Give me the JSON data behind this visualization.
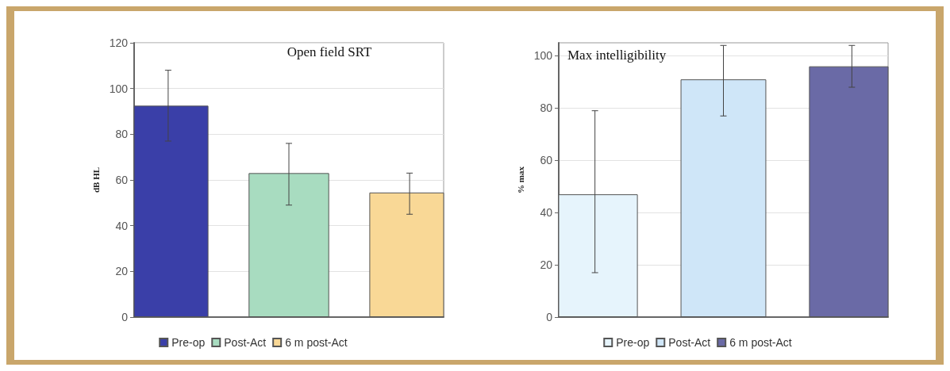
{
  "chart_data": [
    {
      "type": "bar",
      "title": "Open field SRT",
      "ylabel": "dB HL",
      "categories": [
        null
      ],
      "ylim": [
        0,
        120
      ],
      "yticks": [
        0,
        20,
        40,
        60,
        80,
        100,
        120
      ],
      "grid": "y",
      "legend": "bottom",
      "series": [
        {
          "name": "Pre-op",
          "color": "#3a3fa8",
          "values": [
            92.5
          ],
          "errors": [
            [
              77,
              108
            ]
          ]
        },
        {
          "name": "Post-Act",
          "color": "#a8dcc0",
          "values": [
            63
          ],
          "errors": [
            [
              49,
              76
            ]
          ]
        },
        {
          "name": "6 m post-Act",
          "color": "#f9d896",
          "values": [
            54.5
          ],
          "errors": [
            [
              45,
              63
            ]
          ]
        }
      ]
    },
    {
      "type": "bar",
      "title": "Max intelligibility",
      "ylabel": "% max",
      "categories": [
        null
      ],
      "ylim": [
        0,
        105
      ],
      "yticks": [
        0,
        20,
        40,
        60,
        80,
        100
      ],
      "grid": "y",
      "legend": "bottom",
      "series": [
        {
          "name": "Pre-op",
          "color": "#e6f4fc",
          "values": [
            47
          ],
          "errors": [
            [
              17,
              79
            ]
          ]
        },
        {
          "name": "Post-Act",
          "color": "#cfe6f8",
          "values": [
            91
          ],
          "errors": [
            [
              77,
              104
            ]
          ]
        },
        {
          "name": "6 m post-Act",
          "color": "#6a6aa6",
          "values": [
            96
          ],
          "errors": [
            [
              88,
              104
            ]
          ]
        }
      ]
    }
  ]
}
